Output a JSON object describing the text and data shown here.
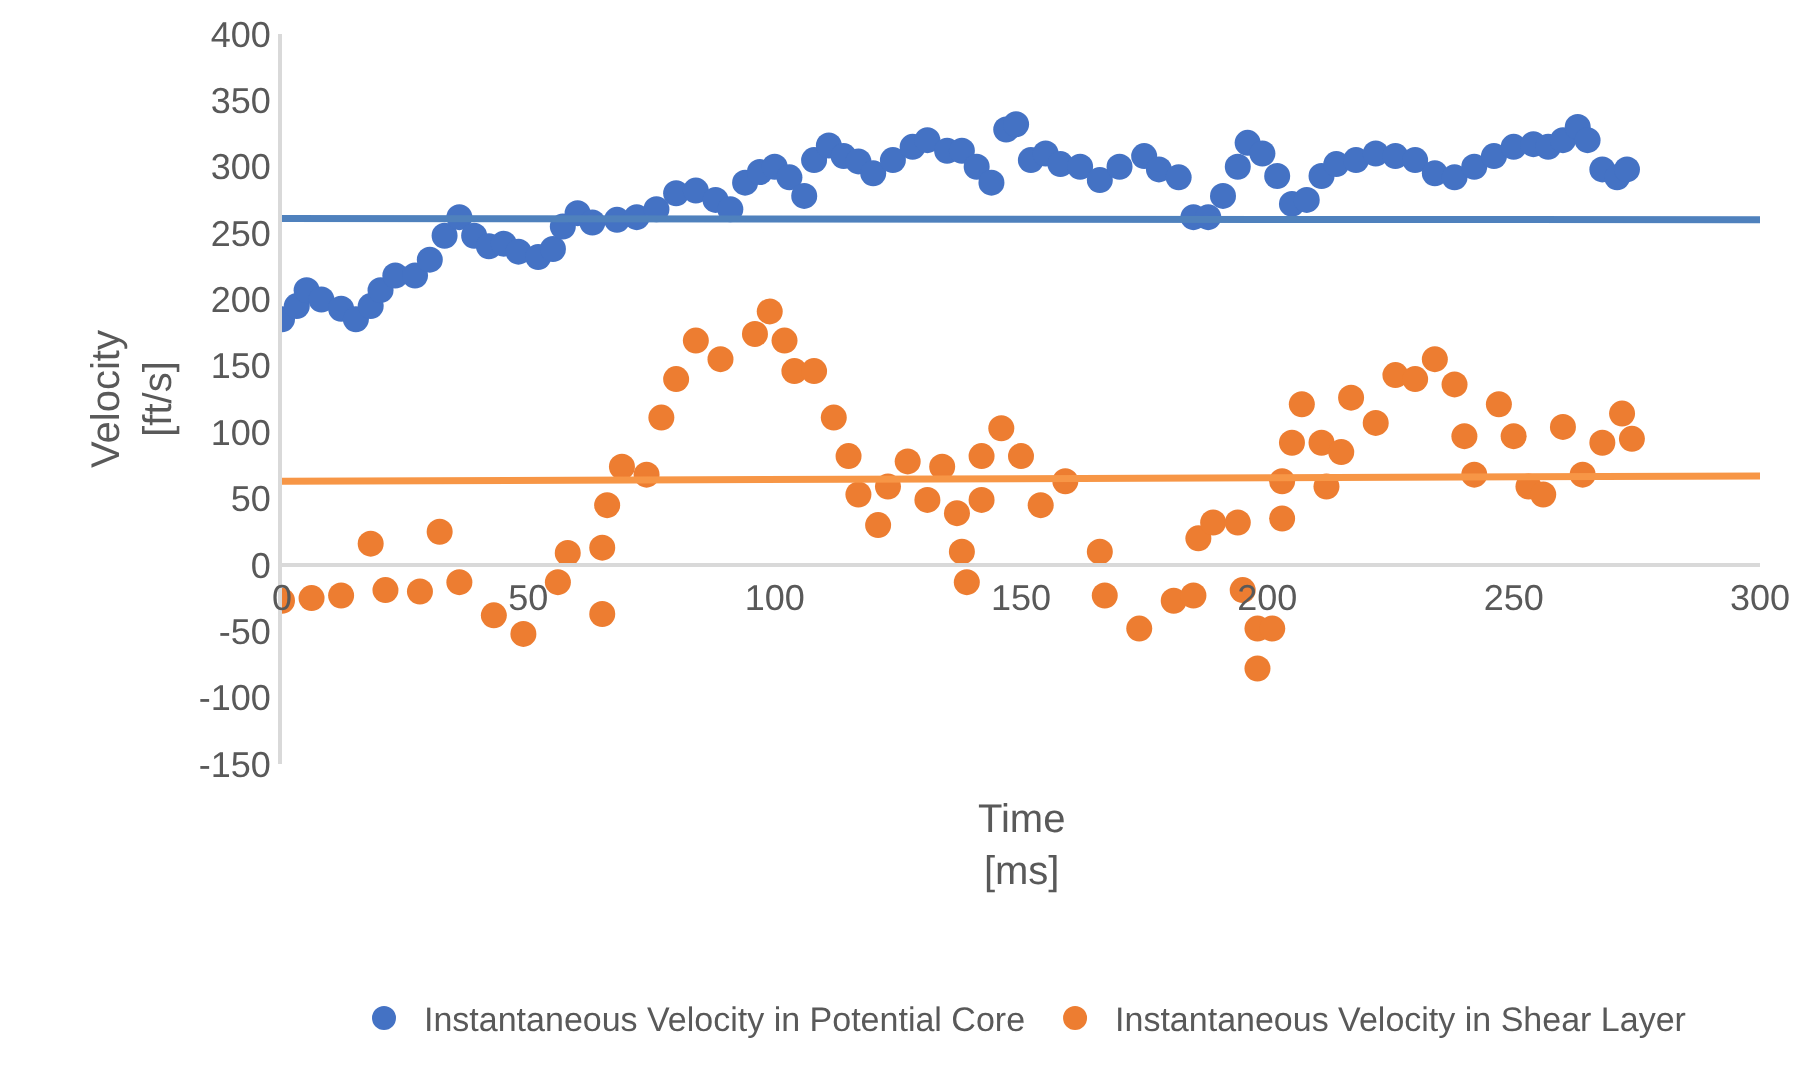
{
  "chart_data": {
    "type": "scatter",
    "xlabel": "Time\n[ms]",
    "ylabel": "Velocity\n[ft/s]",
    "xlim": [
      0,
      300
    ],
    "ylim": [
      -150,
      400
    ],
    "xticks": [
      0,
      50,
      100,
      150,
      200,
      250,
      300
    ],
    "yticks": [
      -150,
      -100,
      -50,
      0,
      50,
      100,
      150,
      200,
      250,
      300,
      350,
      400
    ],
    "grid": false,
    "legend": "bottom",
    "marker": "circle",
    "series": [
      {
        "name": "Instantaneous Velocity in Potential Core",
        "color": "#4472c4",
        "x": [
          0,
          3,
          5,
          8,
          12,
          15,
          18,
          20,
          23,
          27,
          30,
          33,
          36,
          39,
          42,
          45,
          48,
          52,
          55,
          57,
          60,
          63,
          68,
          72,
          76,
          80,
          84,
          88,
          91,
          94,
          97,
          100,
          103,
          106,
          108,
          111,
          114,
          117,
          120,
          124,
          128,
          131,
          135,
          138,
          141,
          144,
          147,
          149,
          152,
          155,
          158,
          162,
          166,
          170,
          175,
          178,
          182,
          185,
          188,
          191,
          194,
          196,
          199,
          202,
          205,
          208,
          211,
          214,
          218,
          222,
          226,
          230,
          234,
          238,
          242,
          246,
          250,
          254,
          257,
          260,
          263,
          265,
          268,
          271,
          273
        ],
        "values": [
          185,
          195,
          207,
          200,
          193,
          185,
          195,
          207,
          218,
          218,
          230,
          248,
          262,
          248,
          240,
          242,
          236,
          232,
          238,
          255,
          265,
          258,
          260,
          262,
          268,
          280,
          282,
          275,
          268,
          288,
          296,
          300,
          292,
          278,
          305,
          316,
          308,
          304,
          295,
          305,
          315,
          320,
          312,
          312,
          300,
          288,
          328,
          332,
          305,
          310,
          302,
          300,
          290,
          300,
          308,
          298,
          292,
          262,
          262,
          278,
          300,
          318,
          310,
          293,
          272,
          275,
          293,
          302,
          305,
          310,
          308,
          305,
          295,
          292,
          300,
          308,
          315,
          317,
          315,
          320,
          330,
          320,
          298,
          292,
          298
        ]
      },
      {
        "name": "Instantaneous Velocity in Shear Layer",
        "color": "#ed7d31",
        "x": [
          0,
          6,
          12,
          18,
          21,
          28,
          32,
          36,
          43,
          49,
          56,
          58,
          65,
          65,
          66,
          69,
          74,
          77,
          80,
          84,
          89,
          96,
          99,
          102,
          104,
          108,
          112,
          115,
          117,
          121,
          123,
          127,
          131,
          134,
          137,
          138,
          139,
          142,
          142,
          146,
          150,
          154,
          159,
          166,
          167,
          174,
          181,
          185,
          186,
          189,
          194,
          195,
          198,
          198,
          201,
          203,
          203,
          205,
          207,
          211,
          212,
          215,
          217,
          222,
          226,
          230,
          234,
          238,
          240,
          242,
          247,
          250,
          253,
          256,
          260,
          264,
          268,
          272,
          274
        ],
        "values": [
          -27,
          -25,
          -23,
          16,
          -19,
          -20,
          25,
          -13,
          -38,
          -52,
          -13,
          9,
          -37,
          13,
          45,
          74,
          68,
          111,
          140,
          169,
          155,
          174,
          191,
          169,
          146,
          146,
          111,
          82,
          53,
          30,
          59,
          78,
          49,
          74,
          39,
          10,
          -13,
          49,
          82,
          103,
          82,
          45,
          63,
          10,
          -23,
          -48,
          -27,
          -23,
          20,
          32,
          32,
          -19,
          -48,
          -78,
          -48,
          35,
          63,
          92,
          121,
          92,
          59,
          85,
          126,
          107,
          143,
          140,
          155,
          136,
          97,
          68,
          121,
          97,
          59,
          53,
          104,
          68,
          92,
          114,
          95
        ]
      },
      {
        "type": "line",
        "marker": "none",
        "color": "#4f81bd",
        "x": [
          0,
          300
        ],
        "values": [
          261,
          260
        ]
      },
      {
        "type": "line",
        "marker": "none",
        "color": "#f79646",
        "x": [
          0,
          300
        ],
        "values": [
          63,
          67
        ]
      }
    ]
  }
}
